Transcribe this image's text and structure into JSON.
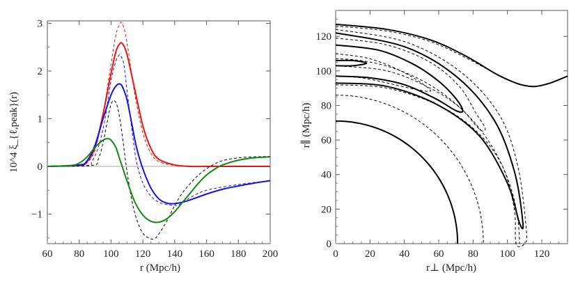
{
  "chart_data": [
    {
      "type": "line",
      "ylabel": "10^4 ξ_{ℓ,peak}(r)",
      "xlabel": "r (Mpc/h)",
      "xlim": [
        60,
        200
      ],
      "ylim": [
        -1.62,
        3.05
      ],
      "xticks": [
        "60",
        "80",
        "100",
        "120",
        "140",
        "160",
        "180",
        "200"
      ],
      "yticks": [
        "−1",
        "0",
        "1",
        "2",
        "3"
      ],
      "grid": false,
      "legend": "none",
      "series": [
        {
          "color": "#ee1111",
          "style": "dashed",
          "x": [
            60,
            80,
            85,
            90,
            95,
            100,
            103,
            105,
            107,
            110,
            115,
            120,
            125,
            130,
            140,
            150,
            160,
            200
          ],
          "y": [
            0,
            0.01,
            0.08,
            0.35,
            1.1,
            2.15,
            2.75,
            2.95,
            3.0,
            2.6,
            1.5,
            0.7,
            0.28,
            0.1,
            0.02,
            0,
            0,
            0
          ]
        },
        {
          "color": "#ee1111",
          "style": "solid",
          "x": [
            60,
            80,
            85,
            90,
            95,
            100,
            103,
            105,
            107,
            110,
            115,
            120,
            125,
            130,
            140,
            150,
            160,
            200
          ],
          "y": [
            0,
            0.02,
            0.1,
            0.4,
            1.1,
            1.95,
            2.4,
            2.55,
            2.58,
            2.35,
            1.6,
            0.85,
            0.38,
            0.15,
            0.03,
            0,
            0,
            0
          ]
        },
        {
          "color": "#1111ee",
          "style": "dashed",
          "x": [
            60,
            85,
            88,
            92,
            96,
            100,
            103,
            105,
            106,
            108,
            110,
            113,
            116,
            120,
            125,
            130,
            135,
            140,
            143,
            150,
            160,
            180,
            200
          ],
          "y": [
            0,
            0.02,
            0.1,
            0.4,
            0.95,
            1.8,
            2.2,
            2.33,
            2.32,
            2.15,
            1.6,
            0.8,
            0.1,
            -0.35,
            -0.62,
            -0.75,
            -0.8,
            -0.82,
            -0.8,
            -0.65,
            -0.5,
            -0.38,
            -0.3
          ]
        },
        {
          "color": "#1111ee",
          "style": "solid",
          "x": [
            60,
            80,
            85,
            90,
            95,
            100,
            103,
            105,
            107,
            110,
            113,
            116,
            120,
            125,
            130,
            135,
            140,
            145,
            150,
            160,
            170,
            180,
            190,
            200
          ],
          "y": [
            0,
            0.03,
            0.12,
            0.45,
            1.0,
            1.5,
            1.68,
            1.73,
            1.68,
            1.4,
            0.9,
            0.4,
            -0.05,
            -0.45,
            -0.68,
            -0.77,
            -0.78,
            -0.75,
            -0.7,
            -0.58,
            -0.48,
            -0.41,
            -0.35,
            -0.3
          ]
        },
        {
          "color": "#000000",
          "style": "dashed",
          "x": [
            60,
            88,
            92,
            95,
            98,
            100,
            102,
            104,
            106,
            108,
            110,
            113,
            116,
            120,
            125,
            128,
            130,
            135,
            140,
            145,
            150,
            155,
            160,
            165,
            170,
            180,
            190,
            200
          ],
          "y": [
            0,
            0.02,
            0.15,
            0.5,
            1.0,
            1.3,
            1.38,
            1.25,
            0.9,
            0.4,
            -0.1,
            -0.7,
            -1.1,
            -1.4,
            -1.52,
            -1.5,
            -1.42,
            -1.15,
            -0.82,
            -0.55,
            -0.35,
            -0.18,
            -0.05,
            0.05,
            0.12,
            0.18,
            0.2,
            0.21
          ]
        },
        {
          "color": "#118811",
          "style": "solid",
          "x": [
            60,
            75,
            80,
            85,
            90,
            95,
            98,
            100,
            103,
            105,
            108,
            110,
            115,
            120,
            125,
            130,
            135,
            140,
            145,
            150,
            155,
            160,
            165,
            170,
            180,
            190,
            200
          ],
          "y": [
            0,
            0.02,
            0.07,
            0.2,
            0.4,
            0.55,
            0.58,
            0.55,
            0.4,
            0.2,
            -0.1,
            -0.3,
            -0.75,
            -1.02,
            -1.15,
            -1.17,
            -1.1,
            -0.95,
            -0.75,
            -0.55,
            -0.35,
            -0.18,
            -0.06,
            0.03,
            0.13,
            0.18,
            0.2
          ]
        }
      ]
    },
    {
      "type": "line",
      "ylabel": "r∥ (Mpc/h)",
      "xlabel": "r⊥ (Mpc/h)",
      "xlim": [
        0,
        135
      ],
      "ylim": [
        0,
        135
      ],
      "xticks": [
        "0",
        "20",
        "40",
        "60",
        "80",
        "100",
        "120"
      ],
      "yticks": [
        "0",
        "20",
        "40",
        "60",
        "80",
        "100",
        "120"
      ],
      "grid": false,
      "legend": "none",
      "contours": [
        {
          "style": "solid",
          "kind": "circle",
          "radius": 71
        },
        {
          "style": "dashed",
          "kind": "circle",
          "radius": 86
        },
        {
          "style": "solid",
          "kind": "loop",
          "points": [
            [
              0,
              106
            ],
            [
              10,
              106
            ],
            [
              18,
              104.5
            ],
            [
              10,
              103
            ],
            [
              0,
              103
            ]
          ]
        },
        {
          "style": "dashed",
          "kind": "loop",
          "points": [
            [
              0,
              110
            ],
            [
              20,
              107
            ],
            [
              40,
              99
            ],
            [
              55,
              89
            ],
            [
              48,
              89
            ],
            [
              30,
              93
            ],
            [
              15,
              96
            ],
            [
              0,
              97
            ]
          ]
        },
        {
          "style": "solid",
          "kind": "loop",
          "points": [
            [
              0,
              115
            ],
            [
              25,
              112
            ],
            [
              45,
              104
            ],
            [
              60,
              94
            ],
            [
              70,
              84
            ],
            [
              74,
              77
            ],
            [
              70,
              77
            ],
            [
              58,
              84
            ],
            [
              40,
              92
            ],
            [
              20,
              96
            ],
            [
              0,
              97
            ]
          ]
        },
        {
          "style": "dashed",
          "kind": "loop",
          "points": [
            [
              0,
              119
            ],
            [
              30,
              115
            ],
            [
              55,
              105
            ],
            [
              72,
              91
            ],
            [
              82,
              75
            ],
            [
              87,
              67
            ],
            [
              84,
              66
            ],
            [
              72,
              79
            ],
            [
              55,
              90
            ],
            [
              30,
              100
            ],
            [
              0,
              103
            ]
          ]
        },
        {
          "style": "solid",
          "kind": "loop",
          "points": [
            [
              0,
              122
            ],
            [
              40,
              114
            ],
            [
              70,
              97
            ],
            [
              92,
              72
            ],
            [
              104,
              42
            ],
            [
              109,
              12
            ],
            [
              107,
              12
            ],
            [
              100,
              35
            ],
            [
              84,
              62
            ],
            [
              60,
              80
            ],
            [
              30,
              91
            ],
            [
              0,
              93
            ]
          ]
        },
        {
          "style": "dashed",
          "kind": "loop",
          "points": [
            [
              0,
              124
            ],
            [
              40,
              117
            ],
            [
              72,
              100
            ],
            [
              95,
              75
            ],
            [
              106,
              45
            ],
            [
              111,
              8
            ],
            [
              110,
              0
            ],
            [
              105,
              0
            ],
            [
              104,
              20
            ],
            [
              97,
              45
            ],
            [
              82,
              65
            ],
            [
              60,
              80
            ],
            [
              30,
              90
            ],
            [
              0,
              92
            ]
          ]
        },
        {
          "style": "dashed",
          "kind": "arc",
          "points": [
            [
              0,
              126
            ],
            [
              30,
              123
            ],
            [
              55,
              117
            ],
            [
              75,
              108
            ],
            [
              92,
              99
            ],
            [
              100,
              95
            ],
            [
              108,
              92
            ],
            [
              116,
              91
            ],
            [
              125,
              93
            ],
            [
              135,
              97
            ]
          ]
        },
        {
          "style": "solid",
          "kind": "arc",
          "points": [
            [
              0,
              127
            ],
            [
              30,
              124
            ],
            [
              55,
              118
            ],
            [
              75,
              109
            ],
            [
              92,
              99
            ],
            [
              100,
              95
            ],
            [
              108,
              92
            ],
            [
              116,
              91
            ],
            [
              125,
              93
            ],
            [
              135,
              97
            ]
          ]
        },
        {
          "style": "dashed",
          "kind": "circle",
          "radius": 107
        }
      ]
    }
  ]
}
